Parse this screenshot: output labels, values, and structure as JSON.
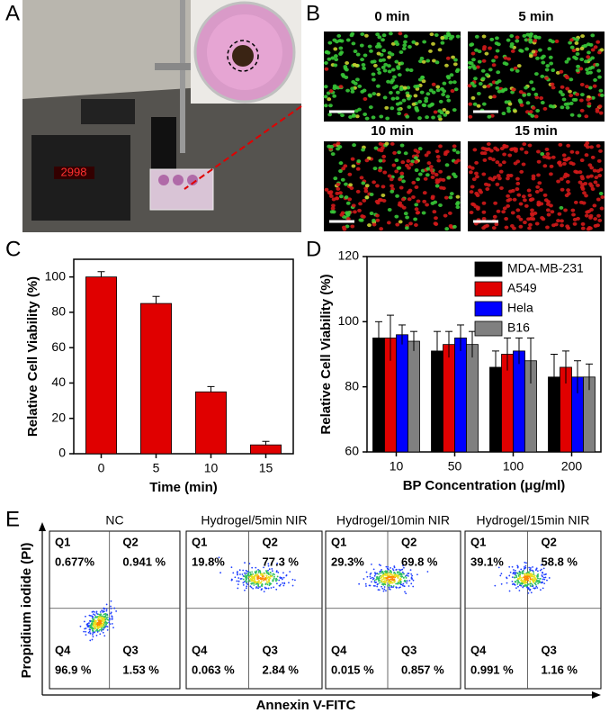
{
  "panel_labels": [
    "A",
    "B",
    "C",
    "D",
    "E"
  ],
  "microscopy": {
    "titles": [
      "0 min",
      "5 min",
      "10 min",
      "15 min"
    ]
  },
  "chart_data": [
    {
      "type": "bar",
      "categories": [
        "0",
        "5",
        "10",
        "15"
      ],
      "values": [
        100,
        85,
        35,
        5
      ],
      "errors": [
        3,
        4,
        3,
        2
      ],
      "color": "#e00000",
      "xlabel": "Time (min)",
      "ylabel": "Relative Cell Viability (%)",
      "ylim": [
        0,
        110
      ],
      "yticks": [
        0,
        20,
        40,
        60,
        80,
        100
      ]
    },
    {
      "type": "grouped_bar",
      "categories": [
        "10",
        "50",
        "100",
        "200"
      ],
      "series": [
        {
          "name": "MDA-MB-231",
          "color": "#000000",
          "values": [
            95,
            91,
            86,
            83
          ],
          "errors": [
            5,
            6,
            5,
            7
          ]
        },
        {
          "name": "A549",
          "color": "#e00000",
          "values": [
            95,
            93,
            90,
            86
          ],
          "errors": [
            7,
            4,
            5,
            5
          ]
        },
        {
          "name": "Hela",
          "color": "#0000ff",
          "values": [
            96,
            95,
            91,
            83
          ],
          "errors": [
            3,
            4,
            4,
            5
          ]
        },
        {
          "name": "B16",
          "color": "#808080",
          "values": [
            94,
            93,
            88,
            83
          ],
          "errors": [
            3,
            4,
            7,
            4
          ]
        }
      ],
      "xlabel": "BP Concentration (μg/ml)",
      "ylabel": "Relative Cell Viability (%)",
      "ylim": [
        60,
        120
      ],
      "yticks": [
        60,
        80,
        100,
        120
      ],
      "legend": "top-right"
    }
  ],
  "flow": {
    "ylabel": "Propidium iodide (PI)",
    "xlabel": "Annexin V-FITC",
    "plots": [
      {
        "title": "NC",
        "quadrants": [
          {
            "label": "Q1",
            "value": "0.677%"
          },
          {
            "label": "Q2",
            "value": "0.941 %"
          },
          {
            "label": "Q3",
            "value": "1.53 %"
          },
          {
            "label": "Q4",
            "value": "96.9 %"
          }
        ]
      },
      {
        "title": "Hydrogel/5min NIR",
        "quadrants": [
          {
            "label": "Q1",
            "value": "19.8%"
          },
          {
            "label": "Q2",
            "value": "77.3 %"
          },
          {
            "label": "Q3",
            "value": "2.84 %"
          },
          {
            "label": "Q4",
            "value": "0.063 %"
          }
        ]
      },
      {
        "title": "Hydrogel/10min NIR",
        "quadrants": [
          {
            "label": "Q1",
            "value": "29.3%"
          },
          {
            "label": "Q2",
            "value": "69.8 %"
          },
          {
            "label": "Q3",
            "value": "0.857 %"
          },
          {
            "label": "Q4",
            "value": "0.015 %"
          }
        ]
      },
      {
        "title": "Hydrogel/15min NIR",
        "quadrants": [
          {
            "label": "Q1",
            "value": "39.1%"
          },
          {
            "label": "Q2",
            "value": "58.8 %"
          },
          {
            "label": "Q3",
            "value": "1.16 %"
          },
          {
            "label": "Q4",
            "value": "0.991 %"
          }
        ]
      }
    ]
  }
}
